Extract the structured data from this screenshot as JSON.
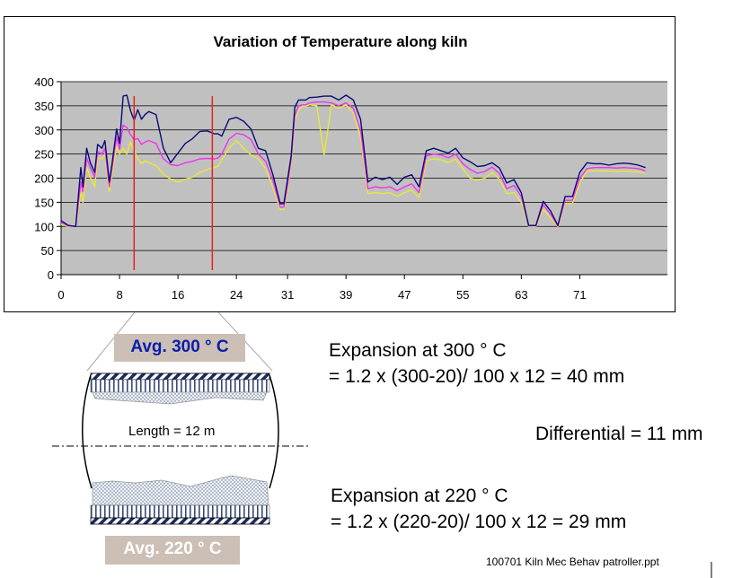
{
  "chart_data": {
    "type": "line",
    "title": "Variation of Temperature along kiln",
    "xlabel": "",
    "ylabel": "",
    "xlim": [
      0,
      83
    ],
    "ylim": [
      0,
      400
    ],
    "yticks": [
      0,
      50,
      100,
      150,
      200,
      250,
      300,
      350,
      400
    ],
    "xticks": [
      0,
      8,
      16,
      24,
      31,
      39,
      47,
      55,
      63,
      71
    ],
    "grid": true,
    "plot_background": "#c0c0c0",
    "markers_x": [
      10,
      20.7
    ],
    "marker_color": "#e8201e",
    "series": [
      {
        "color": "#0a0a78",
        "x": [
          0,
          1,
          2,
          2.7,
          3,
          3.5,
          4,
          4.6,
          5,
          5.6,
          6,
          6.6,
          7,
          7.6,
          8,
          8.5,
          9,
          9.5,
          10,
          10.5,
          11,
          11.5,
          12,
          13,
          14,
          15,
          16,
          17,
          18,
          19,
          20,
          21,
          21.5,
          22,
          23,
          24,
          25,
          26,
          27,
          28,
          29,
          30,
          30.5,
          31,
          31.5,
          32,
          32.5,
          33,
          33.5,
          34,
          35,
          36,
          37,
          38,
          39,
          40,
          41,
          42,
          43,
          44,
          45,
          46,
          47,
          48,
          49,
          50,
          51,
          52,
          53,
          54,
          55,
          56,
          57,
          58,
          59,
          60,
          61,
          62,
          63,
          64,
          65,
          66,
          67,
          68,
          69,
          70,
          71,
          72,
          73,
          74,
          75,
          76,
          77,
          78,
          79,
          80
        ],
        "y": [
          112,
          102,
          100,
          222,
          182,
          262,
          232,
          212,
          270,
          262,
          278,
          192,
          232,
          302,
          272,
          370,
          372,
          340,
          320,
          342,
          322,
          332,
          338,
          332,
          262,
          232,
          252,
          272,
          282,
          297,
          298,
          292,
          292,
          287,
          322,
          326,
          318,
          302,
          262,
          257,
          207,
          147,
          147,
          197,
          247,
          347,
          362,
          362,
          362,
          367,
          368,
          370,
          370,
          362,
          372,
          362,
          322,
          192,
          202,
          197,
          202,
          187,
          202,
          207,
          182,
          257,
          262,
          257,
          252,
          262,
          242,
          234,
          224,
          226,
          232,
          221,
          190,
          197,
          170,
          102,
          102,
          152,
          132,
          102,
          162,
          162,
          212,
          232,
          230,
          230,
          227,
          230,
          231,
          230,
          227,
          222
        ]
      },
      {
        "color": "#ee33ee",
        "x": [
          0,
          1,
          2,
          2.7,
          3,
          3.5,
          4,
          4.6,
          5,
          5.6,
          6,
          6.6,
          7,
          7.6,
          8,
          8.5,
          9,
          9.5,
          10,
          10.5,
          11,
          11.5,
          12,
          13,
          14,
          15,
          16,
          17,
          18,
          19,
          20,
          21,
          21.5,
          22,
          23,
          24,
          25,
          26,
          27,
          28,
          29,
          30,
          30.5,
          31,
          31.5,
          32,
          32.5,
          33,
          33.5,
          34,
          35,
          36,
          37,
          38,
          39,
          40,
          41,
          42,
          43,
          44,
          45,
          46,
          47,
          48,
          49,
          50,
          51,
          52,
          53,
          54,
          55,
          56,
          57,
          58,
          59,
          60,
          61,
          62,
          63,
          64,
          65,
          66,
          67,
          68,
          69,
          70,
          71,
          72,
          73,
          74,
          75,
          76,
          77,
          78,
          79,
          80
        ],
        "y": [
          108,
          101,
          100,
          192,
          172,
          242,
          222,
          202,
          255,
          250,
          262,
          182,
          222,
          285,
          260,
          310,
          305,
          290,
          280,
          282,
          270,
          275,
          278,
          272,
          240,
          228,
          226,
          232,
          235,
          240,
          241,
          240,
          242,
          250,
          281,
          293,
          290,
          280,
          250,
          235,
          195,
          140,
          140,
          185,
          240,
          330,
          350,
          352,
          352,
          356,
          358,
          358,
          356,
          350,
          356,
          345,
          300,
          178,
          182,
          180,
          182,
          174,
          182,
          188,
          170,
          246,
          250,
          248,
          242,
          250,
          230,
          218,
          210,
          214,
          223,
          210,
          178,
          185,
          162,
          101,
          101,
          145,
          125,
          101,
          154,
          154,
          200,
          220,
          222,
          222,
          222,
          221,
          222,
          221,
          220,
          215
        ]
      },
      {
        "color": "#e8e83a",
        "x": [
          0,
          1,
          2,
          2.7,
          3,
          3.5,
          4,
          4.6,
          5,
          5.6,
          6,
          6.6,
          7,
          7.6,
          8,
          8.5,
          9,
          9.5,
          10,
          10.5,
          11,
          11.5,
          12,
          13,
          14,
          15,
          16,
          17,
          18,
          19,
          20,
          21,
          21.5,
          22,
          23,
          24,
          25,
          26,
          27,
          28,
          29,
          30,
          30.5,
          31,
          31.5,
          32,
          32.5,
          33,
          33.5,
          34,
          35,
          36,
          37,
          38,
          39,
          40,
          41,
          42,
          43,
          44,
          45,
          46,
          47,
          48,
          49,
          50,
          51,
          52,
          53,
          54,
          55,
          56,
          57,
          58,
          59,
          60,
          61,
          62,
          63,
          64,
          65,
          66,
          67,
          68,
          69,
          70,
          71,
          72,
          73,
          74,
          75,
          76,
          77,
          78,
          79,
          80
        ],
        "y": [
          104,
          100,
          100,
          170,
          150,
          222,
          202,
          182,
          242,
          240,
          250,
          172,
          210,
          265,
          250,
          262,
          250,
          275,
          258,
          240,
          230,
          236,
          232,
          226,
          208,
          198,
          192,
          198,
          202,
          212,
          218,
          222,
          225,
          238,
          262,
          278,
          262,
          248,
          240,
          220,
          180,
          135,
          135,
          175,
          232,
          320,
          340,
          350,
          350,
          352,
          350,
          248,
          352,
          345,
          352,
          335,
          285,
          168,
          170,
          168,
          170,
          162,
          170,
          175,
          160,
          236,
          240,
          238,
          232,
          240,
          220,
          200,
          196,
          200,
          212,
          198,
          168,
          170,
          150,
          100,
          100,
          136,
          118,
          100,
          148,
          148,
          190,
          215,
          215,
          215,
          215,
          214,
          215,
          214,
          213,
          210
        ]
      }
    ]
  },
  "diagram": {
    "avg_top": "Avg. 300 ° C",
    "avg_bottom": "Avg. 220 ° C",
    "length_label": "Length = 12 m"
  },
  "text": {
    "expansion_300_line1": "Expansion at 300 ° C",
    "expansion_300_line2": "= 1.2 x (300-20)/ 100 x 12 = 40 mm",
    "differential": "Differential = 11 mm",
    "expansion_220_line1": "Expansion at 220 ° C",
    "expansion_220_line2": "= 1.2 x (220-20)/ 100 x 12 = 29 mm",
    "footer": "100701 Kiln Mec Behav patroller.ppt"
  },
  "colors": {
    "avg_top_text": "#0b1fa8",
    "avg_bottom_text": "#ffffff",
    "avg_box_bg": "#cbbfb6"
  }
}
